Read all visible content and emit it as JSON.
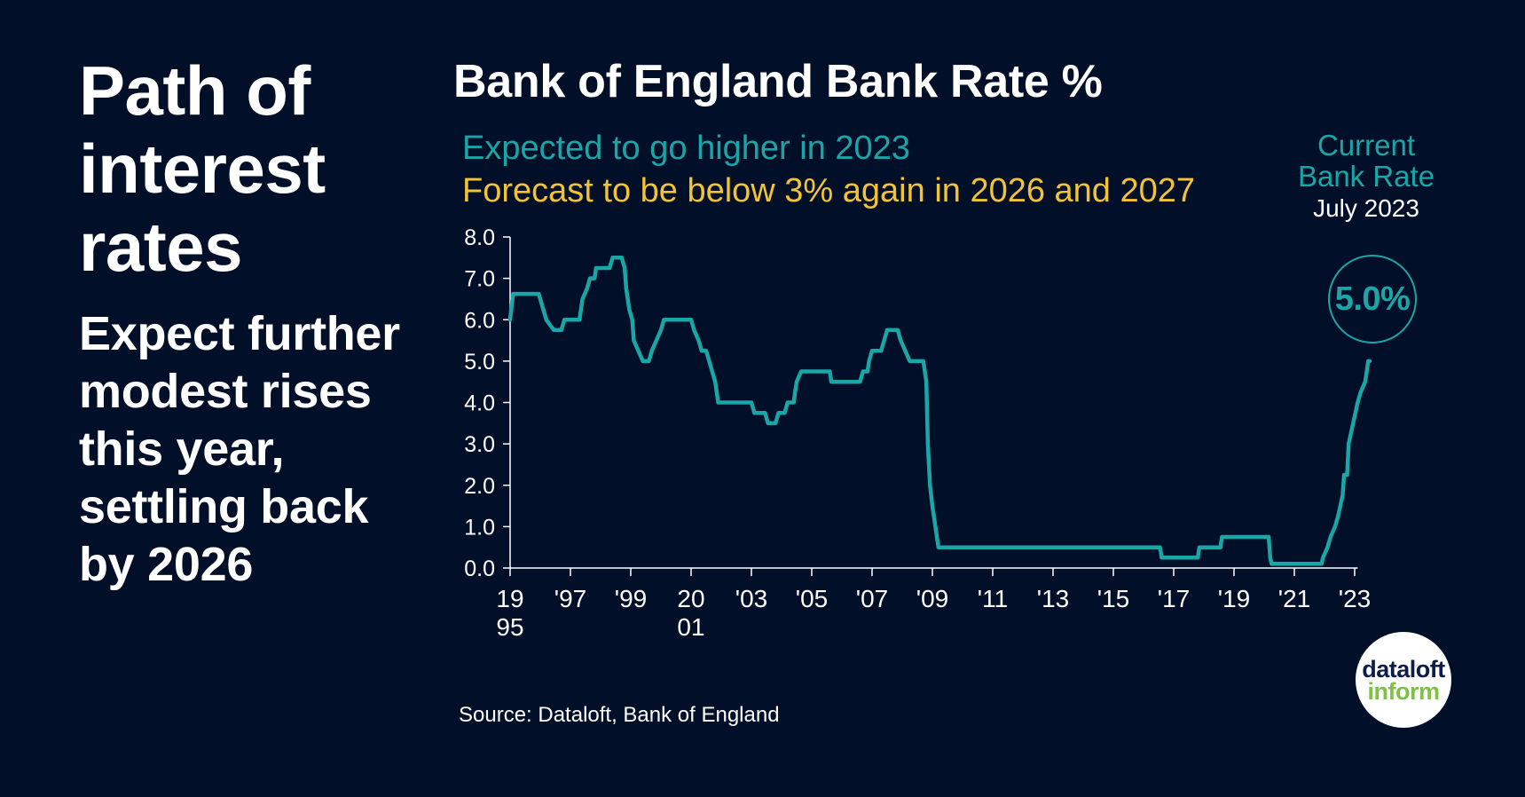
{
  "headline": "Path of interest rates",
  "subheadline": "Expect further modest rises this year, settling back by 2026",
  "source": "Source: Dataloft, Bank of England",
  "brand": {
    "line1": "dataloft",
    "line2": "inform",
    "accent": "#7dc242"
  },
  "colors": {
    "background": "#020f28",
    "teal": "#1aa6a6",
    "yellow": "#f2c433",
    "text": "#ffffff"
  },
  "current_rate": {
    "line1": "Current",
    "line2": "Bank Rate",
    "date": "July 2023",
    "value": "5.0%"
  },
  "chart_data": {
    "type": "line",
    "title": "Bank of England Bank Rate %",
    "subtitle_lines": [
      {
        "text": "Expected to go higher in 2023",
        "color": "#1aa6a6"
      },
      {
        "text": "Forecast to be below 3% again in 2026 and 2027",
        "color": "#f2c433"
      }
    ],
    "xlabel": "",
    "ylabel": "",
    "ylim": [
      0,
      8
    ],
    "yticks": [
      "0.0",
      "1.0",
      "2.0",
      "3.0",
      "4.0",
      "5.0",
      "6.0",
      "7.0",
      "8.0"
    ],
    "xlim": [
      1995,
      2023.5
    ],
    "xticks": [
      {
        "x": 1995,
        "label": "19",
        "label2": "95"
      },
      {
        "x": 1997,
        "label": "'97",
        "label2": ""
      },
      {
        "x": 1999,
        "label": "'99",
        "label2": ""
      },
      {
        "x": 2001,
        "label": "20",
        "label2": "01"
      },
      {
        "x": 2003,
        "label": "'03",
        "label2": ""
      },
      {
        "x": 2005,
        "label": "'05",
        "label2": ""
      },
      {
        "x": 2007,
        "label": "'07",
        "label2": ""
      },
      {
        "x": 2009,
        "label": "'09",
        "label2": ""
      },
      {
        "x": 2011,
        "label": "'11",
        "label2": ""
      },
      {
        "x": 2013,
        "label": "'13",
        "label2": ""
      },
      {
        "x": 2015,
        "label": "'15",
        "label2": ""
      },
      {
        "x": 2017,
        "label": "'17",
        "label2": ""
      },
      {
        "x": 2019,
        "label": "'19",
        "label2": ""
      },
      {
        "x": 2021,
        "label": "'21",
        "label2": ""
      },
      {
        "x": 2023,
        "label": "'23",
        "label2": ""
      }
    ],
    "grid": false,
    "series": [
      {
        "color": "#1aa6a6",
        "points": [
          [
            1995.0,
            6.0
          ],
          [
            1995.1,
            6.625
          ],
          [
            1995.95,
            6.625
          ],
          [
            1996.1,
            6.25
          ],
          [
            1996.2,
            6.0
          ],
          [
            1996.45,
            5.75
          ],
          [
            1996.7,
            5.75
          ],
          [
            1996.8,
            6.0
          ],
          [
            1997.3,
            6.0
          ],
          [
            1997.4,
            6.5
          ],
          [
            1997.55,
            6.75
          ],
          [
            1997.65,
            7.0
          ],
          [
            1997.8,
            7.0
          ],
          [
            1997.85,
            7.25
          ],
          [
            1998.3,
            7.25
          ],
          [
            1998.4,
            7.5
          ],
          [
            1998.7,
            7.5
          ],
          [
            1998.8,
            7.25
          ],
          [
            1998.85,
            6.75
          ],
          [
            1998.95,
            6.25
          ],
          [
            1999.05,
            6.0
          ],
          [
            1999.1,
            5.5
          ],
          [
            1999.25,
            5.25
          ],
          [
            1999.4,
            5.0
          ],
          [
            1999.6,
            5.0
          ],
          [
            1999.7,
            5.25
          ],
          [
            1999.85,
            5.5
          ],
          [
            2000.0,
            5.75
          ],
          [
            2000.1,
            6.0
          ],
          [
            2001.0,
            6.0
          ],
          [
            2001.1,
            5.75
          ],
          [
            2001.25,
            5.5
          ],
          [
            2001.35,
            5.25
          ],
          [
            2001.5,
            5.25
          ],
          [
            2001.6,
            5.0
          ],
          [
            2001.7,
            4.75
          ],
          [
            2001.8,
            4.5
          ],
          [
            2001.9,
            4.0
          ],
          [
            2003.0,
            4.0
          ],
          [
            2003.1,
            3.75
          ],
          [
            2003.45,
            3.75
          ],
          [
            2003.55,
            3.5
          ],
          [
            2003.8,
            3.5
          ],
          [
            2003.9,
            3.75
          ],
          [
            2004.1,
            3.75
          ],
          [
            2004.2,
            4.0
          ],
          [
            2004.4,
            4.0
          ],
          [
            2004.45,
            4.25
          ],
          [
            2004.5,
            4.5
          ],
          [
            2004.65,
            4.75
          ],
          [
            2005.6,
            4.75
          ],
          [
            2005.65,
            4.5
          ],
          [
            2006.6,
            4.5
          ],
          [
            2006.7,
            4.75
          ],
          [
            2006.85,
            4.75
          ],
          [
            2006.9,
            5.0
          ],
          [
            2007.0,
            5.25
          ],
          [
            2007.3,
            5.25
          ],
          [
            2007.4,
            5.5
          ],
          [
            2007.5,
            5.75
          ],
          [
            2007.85,
            5.75
          ],
          [
            2007.95,
            5.5
          ],
          [
            2008.1,
            5.25
          ],
          [
            2008.25,
            5.0
          ],
          [
            2008.7,
            5.0
          ],
          [
            2008.8,
            4.5
          ],
          [
            2008.85,
            3.0
          ],
          [
            2008.92,
            2.0
          ],
          [
            2009.0,
            1.5
          ],
          [
            2009.1,
            1.0
          ],
          [
            2009.2,
            0.5
          ],
          [
            2016.55,
            0.5
          ],
          [
            2016.6,
            0.25
          ],
          [
            2017.8,
            0.25
          ],
          [
            2017.85,
            0.5
          ],
          [
            2018.55,
            0.5
          ],
          [
            2018.6,
            0.75
          ],
          [
            2020.15,
            0.75
          ],
          [
            2020.2,
            0.25
          ],
          [
            2020.25,
            0.1
          ],
          [
            2021.9,
            0.1
          ],
          [
            2021.95,
            0.25
          ],
          [
            2022.1,
            0.5
          ],
          [
            2022.2,
            0.75
          ],
          [
            2022.35,
            1.0
          ],
          [
            2022.45,
            1.25
          ],
          [
            2022.6,
            1.75
          ],
          [
            2022.65,
            2.25
          ],
          [
            2022.75,
            2.25
          ],
          [
            2022.8,
            3.0
          ],
          [
            2022.95,
            3.5
          ],
          [
            2023.1,
            4.0
          ],
          [
            2023.2,
            4.25
          ],
          [
            2023.35,
            4.5
          ],
          [
            2023.45,
            5.0
          ],
          [
            2023.5,
            5.0
          ]
        ]
      }
    ]
  }
}
